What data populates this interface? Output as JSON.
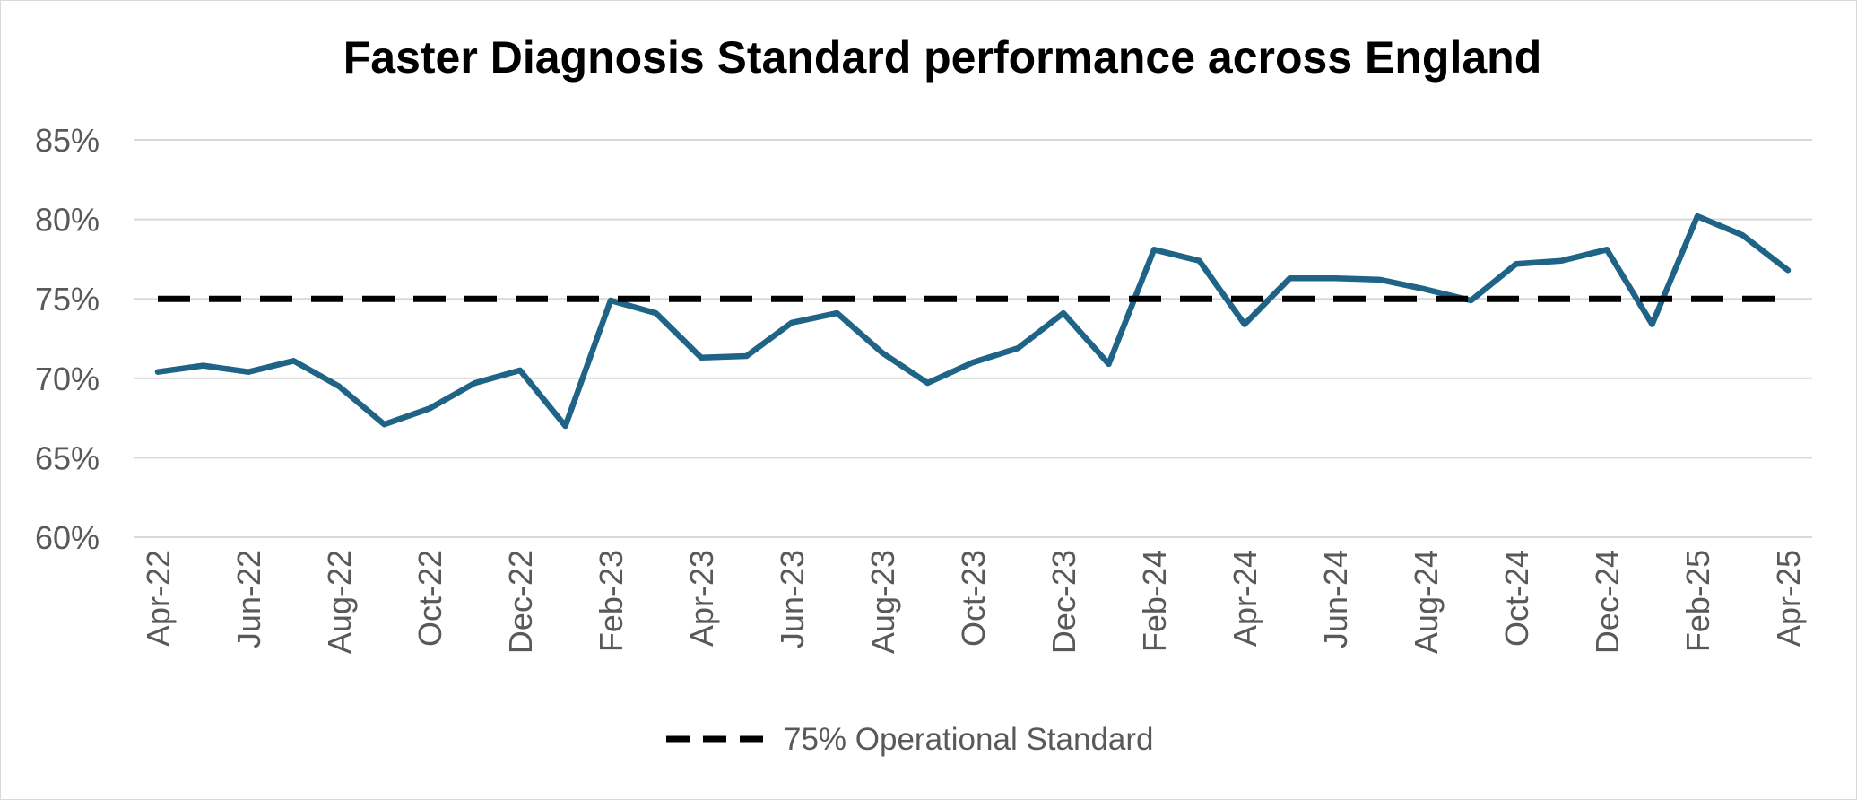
{
  "chart_data": {
    "type": "line",
    "title": "Faster Diagnosis Standard performance across England",
    "xlabel": "",
    "ylabel": "",
    "ylim": [
      60,
      85
    ],
    "y_ticks": [
      60,
      65,
      70,
      75,
      80,
      85
    ],
    "y_tick_labels": [
      "60%",
      "65%",
      "70%",
      "75%",
      "80%",
      "85%"
    ],
    "grid": true,
    "categories": [
      "Apr-22",
      "May-22",
      "Jun-22",
      "Jul-22",
      "Aug-22",
      "Sep-22",
      "Oct-22",
      "Nov-22",
      "Dec-22",
      "Jan-23",
      "Feb-23",
      "Mar-23",
      "Apr-23",
      "May-23",
      "Jun-23",
      "Jul-23",
      "Aug-23",
      "Sep-23",
      "Oct-23",
      "Nov-23",
      "Dec-23",
      "Jan-24",
      "Feb-24",
      "Mar-24",
      "Apr-24",
      "May-24",
      "Jun-24",
      "Jul-24",
      "Aug-24",
      "Sep-24",
      "Oct-24",
      "Nov-24",
      "Dec-24",
      "Jan-25",
      "Feb-25",
      "Mar-25",
      "Apr-25"
    ],
    "x_tick_labels": [
      "Apr-22",
      "Jun-22",
      "Aug-22",
      "Oct-22",
      "Dec-22",
      "Feb-23",
      "Apr-23",
      "Jun-23",
      "Aug-23",
      "Oct-23",
      "Dec-23",
      "Feb-24",
      "Apr-24",
      "Jun-24",
      "Aug-24",
      "Oct-24",
      "Dec-24",
      "Feb-25",
      "Apr-25"
    ],
    "series": [
      {
        "name": "Faster Diagnosis Standard performance",
        "color": "#1f6386",
        "style": "solid",
        "values": [
          70.4,
          70.8,
          70.4,
          71.1,
          69.5,
          67.1,
          68.1,
          69.7,
          70.5,
          67.0,
          74.9,
          74.1,
          71.3,
          71.4,
          73.5,
          74.1,
          71.6,
          69.7,
          71.0,
          71.9,
          74.1,
          70.9,
          78.1,
          77.4,
          73.4,
          76.3,
          76.3,
          76.2,
          75.6,
          74.9,
          77.2,
          77.4,
          78.1,
          73.4,
          80.2,
          79.0,
          76.8
        ]
      },
      {
        "name": "75% Operational Standard",
        "color": "#000000",
        "style": "dashed",
        "values": [
          75,
          75,
          75,
          75,
          75,
          75,
          75,
          75,
          75,
          75,
          75,
          75,
          75,
          75,
          75,
          75,
          75,
          75,
          75,
          75,
          75,
          75,
          75,
          75,
          75,
          75,
          75,
          75,
          75,
          75,
          75,
          75,
          75,
          75,
          75,
          75,
          75
        ]
      }
    ],
    "legend": {
      "position": "bottom",
      "entries": [
        "75% Operational Standard"
      ]
    }
  }
}
